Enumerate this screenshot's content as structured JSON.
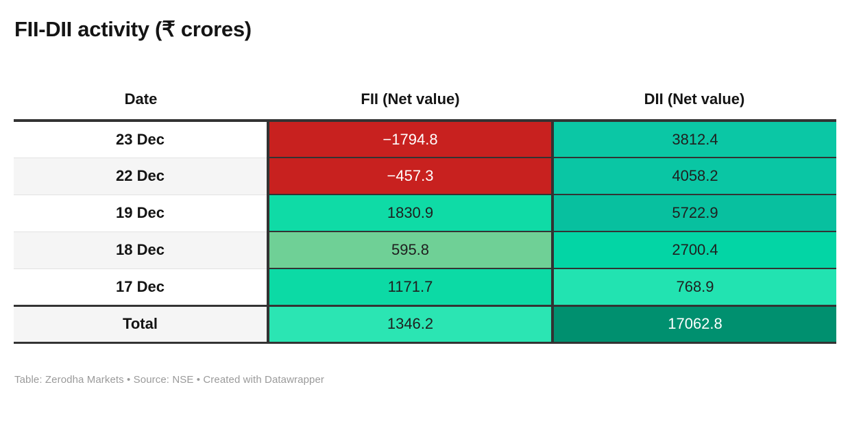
{
  "title": "FII-DII activity (₹ crores)",
  "footer": "Table: Zerodha Markets • Source: NSE • Created with Datawrapper",
  "table": {
    "columns": [
      "Date",
      "FII (Net value)",
      "DII (Net value)"
    ],
    "rows": [
      {
        "date": "23 Dec",
        "fii": {
          "value": "−1794.8",
          "bg": "#c8211f",
          "fg": "#ffffff"
        },
        "dii": {
          "value": "3812.4",
          "bg": "#0bc7a5",
          "fg": "#1f1f1f"
        }
      },
      {
        "date": "22 Dec",
        "fii": {
          "value": "−457.3",
          "bg": "#c8211f",
          "fg": "#ffffff"
        },
        "dii": {
          "value": "4058.2",
          "bg": "#0ac6a4",
          "fg": "#1f1f1f"
        }
      },
      {
        "date": "19 Dec",
        "fii": {
          "value": "1830.9",
          "bg": "#0fdba6",
          "fg": "#1f1f1f"
        },
        "dii": {
          "value": "5722.9",
          "bg": "#08c09f",
          "fg": "#1f1f1f"
        }
      },
      {
        "date": "18 Dec",
        "fii": {
          "value": "595.8",
          "bg": "#6fd096",
          "fg": "#1f1f1f"
        },
        "dii": {
          "value": "2700.4",
          "bg": "#03d5a5",
          "fg": "#1f1f1f"
        }
      },
      {
        "date": "17 Dec",
        "fii": {
          "value": "1171.7",
          "bg": "#0cdaa5",
          "fg": "#1f1f1f"
        },
        "dii": {
          "value": "768.9",
          "bg": "#22e3b1",
          "fg": "#1f1f1f"
        }
      }
    ],
    "total": {
      "label": "Total",
      "fii": {
        "value": "1346.2",
        "bg": "#2be5b3",
        "fg": "#1f1f1f"
      },
      "dii": {
        "value": "17062.8",
        "bg": "#00906f",
        "fg": "#ffffff"
      }
    }
  },
  "chart_data": {
    "type": "table",
    "title": "FII-DII activity (₹ crores)",
    "columns": [
      "Date",
      "FII (Net value)",
      "DII (Net value)"
    ],
    "categories": [
      "23 Dec",
      "22 Dec",
      "19 Dec",
      "18 Dec",
      "17 Dec",
      "Total"
    ],
    "series": [
      {
        "name": "FII (Net value)",
        "values": [
          -1794.8,
          -457.3,
          1830.9,
          595.8,
          1171.7,
          1346.2
        ]
      },
      {
        "name": "DII (Net value)",
        "values": [
          3812.4,
          4058.2,
          5722.9,
          2700.4,
          768.9,
          17062.8
        ]
      }
    ],
    "color_coding": {
      "negative": "#c8211f",
      "positive_scale_low": "#22e3b1",
      "positive_scale_high": "#00906f"
    },
    "notes": "Table: Zerodha Markets • Source: NSE • Created with Datawrapper"
  }
}
